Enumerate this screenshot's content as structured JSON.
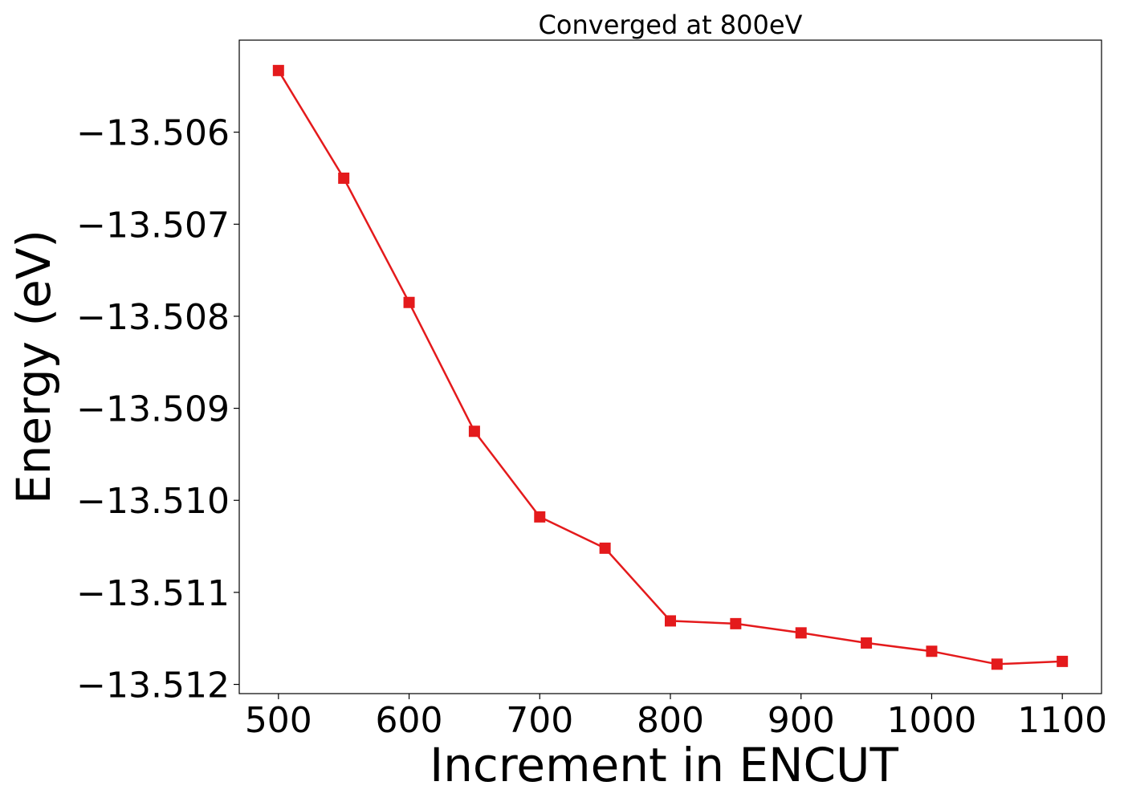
{
  "chart_data": {
    "type": "line",
    "title": "Converged at 800eV",
    "xlabel": "Increment in ENCUT",
    "ylabel": "Energy (eV)",
    "x": [
      500,
      550,
      600,
      650,
      700,
      750,
      800,
      850,
      900,
      950,
      1000,
      1050,
      1100
    ],
    "series": [
      {
        "values": [
          -13.50533,
          -13.5065,
          -13.50785,
          -13.50925,
          -13.51018,
          -13.51052,
          -13.51131,
          -13.51134,
          -13.51144,
          -13.51155,
          -13.51164,
          -13.51178,
          -13.51175
        ],
        "color": "#e41a1c",
        "marker": "square"
      }
    ],
    "xticks": [
      500,
      600,
      700,
      800,
      900,
      1000,
      1100
    ],
    "xtick_labels": [
      "500",
      "600",
      "700",
      "800",
      "900",
      "1000",
      "1100"
    ],
    "yticks": [
      -13.506,
      -13.507,
      -13.508,
      -13.509,
      -13.51,
      -13.511,
      -13.512
    ],
    "ytick_labels": [
      "−13.506",
      "−13.507",
      "−13.508",
      "−13.509",
      "−13.510",
      "−13.511",
      "−13.512"
    ],
    "xlim": [
      470,
      1130
    ],
    "ylim": [
      -13.5121,
      -13.505
    ],
    "grid": false,
    "legend": false
  }
}
